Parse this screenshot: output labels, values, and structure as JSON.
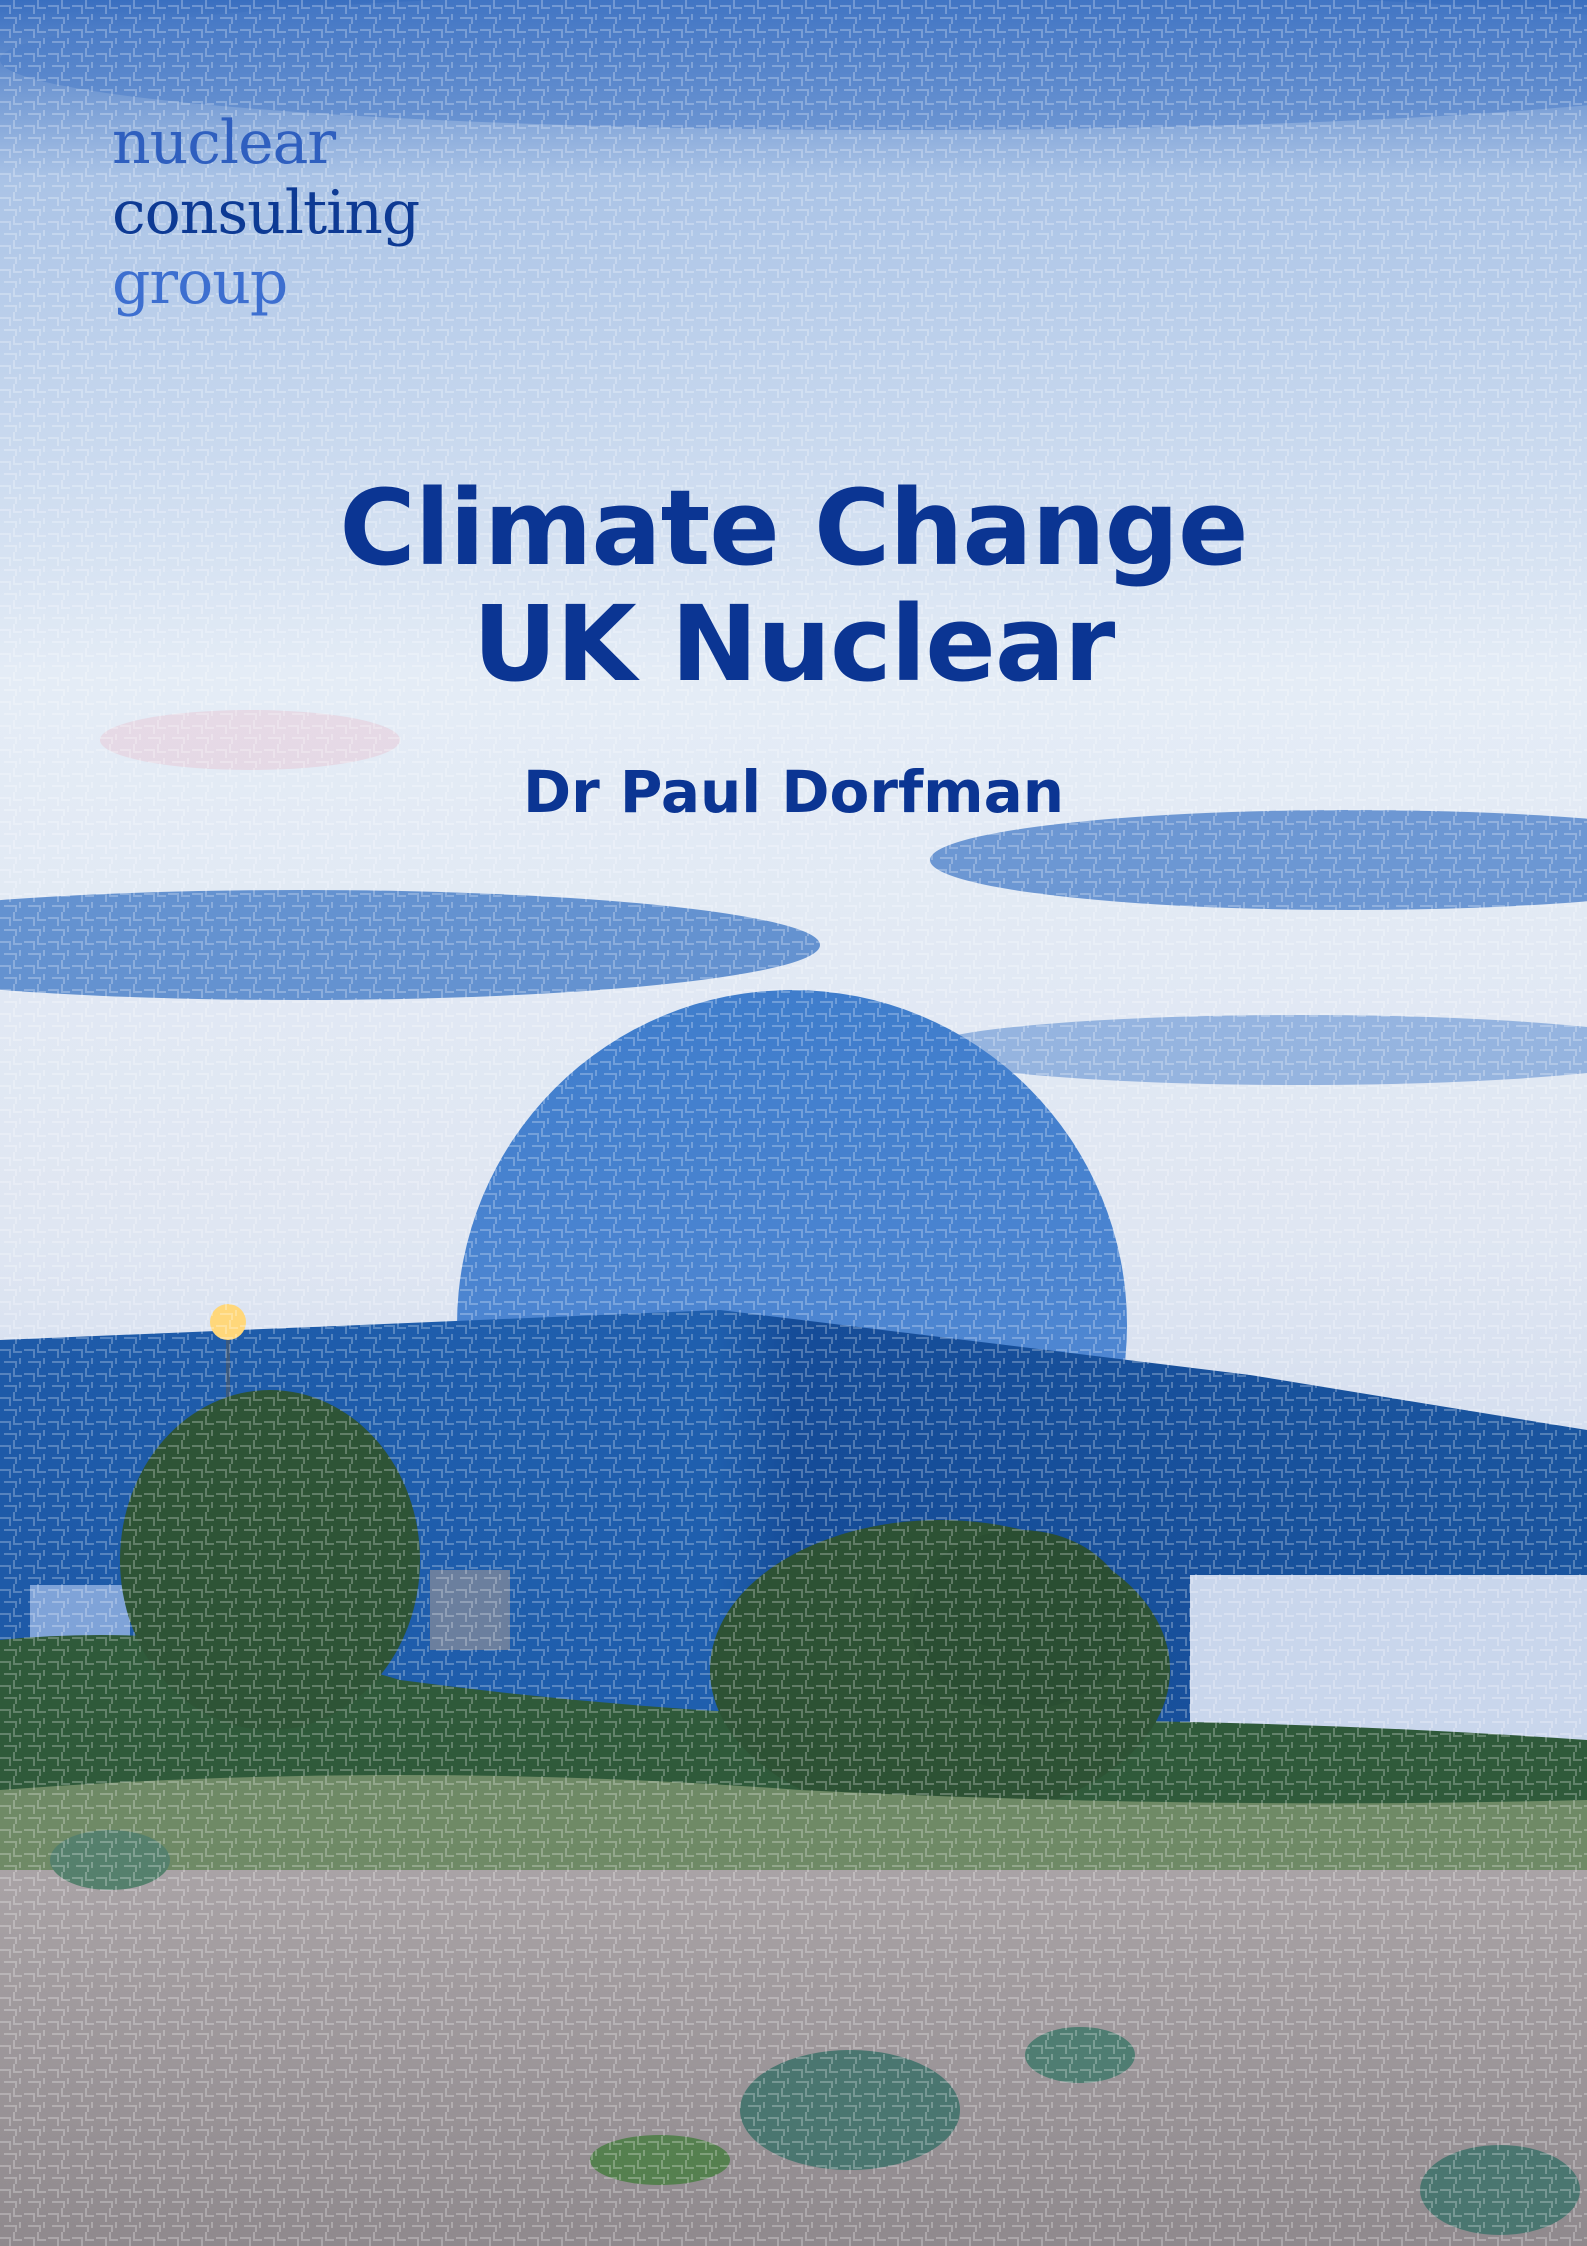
{
  "header": {
    "logo": [
      "nuclear",
      "consulting",
      "group"
    ]
  },
  "title": [
    "Climate Change",
    "UK Nuclear"
  ],
  "author": "Dr Paul Dorfman"
}
